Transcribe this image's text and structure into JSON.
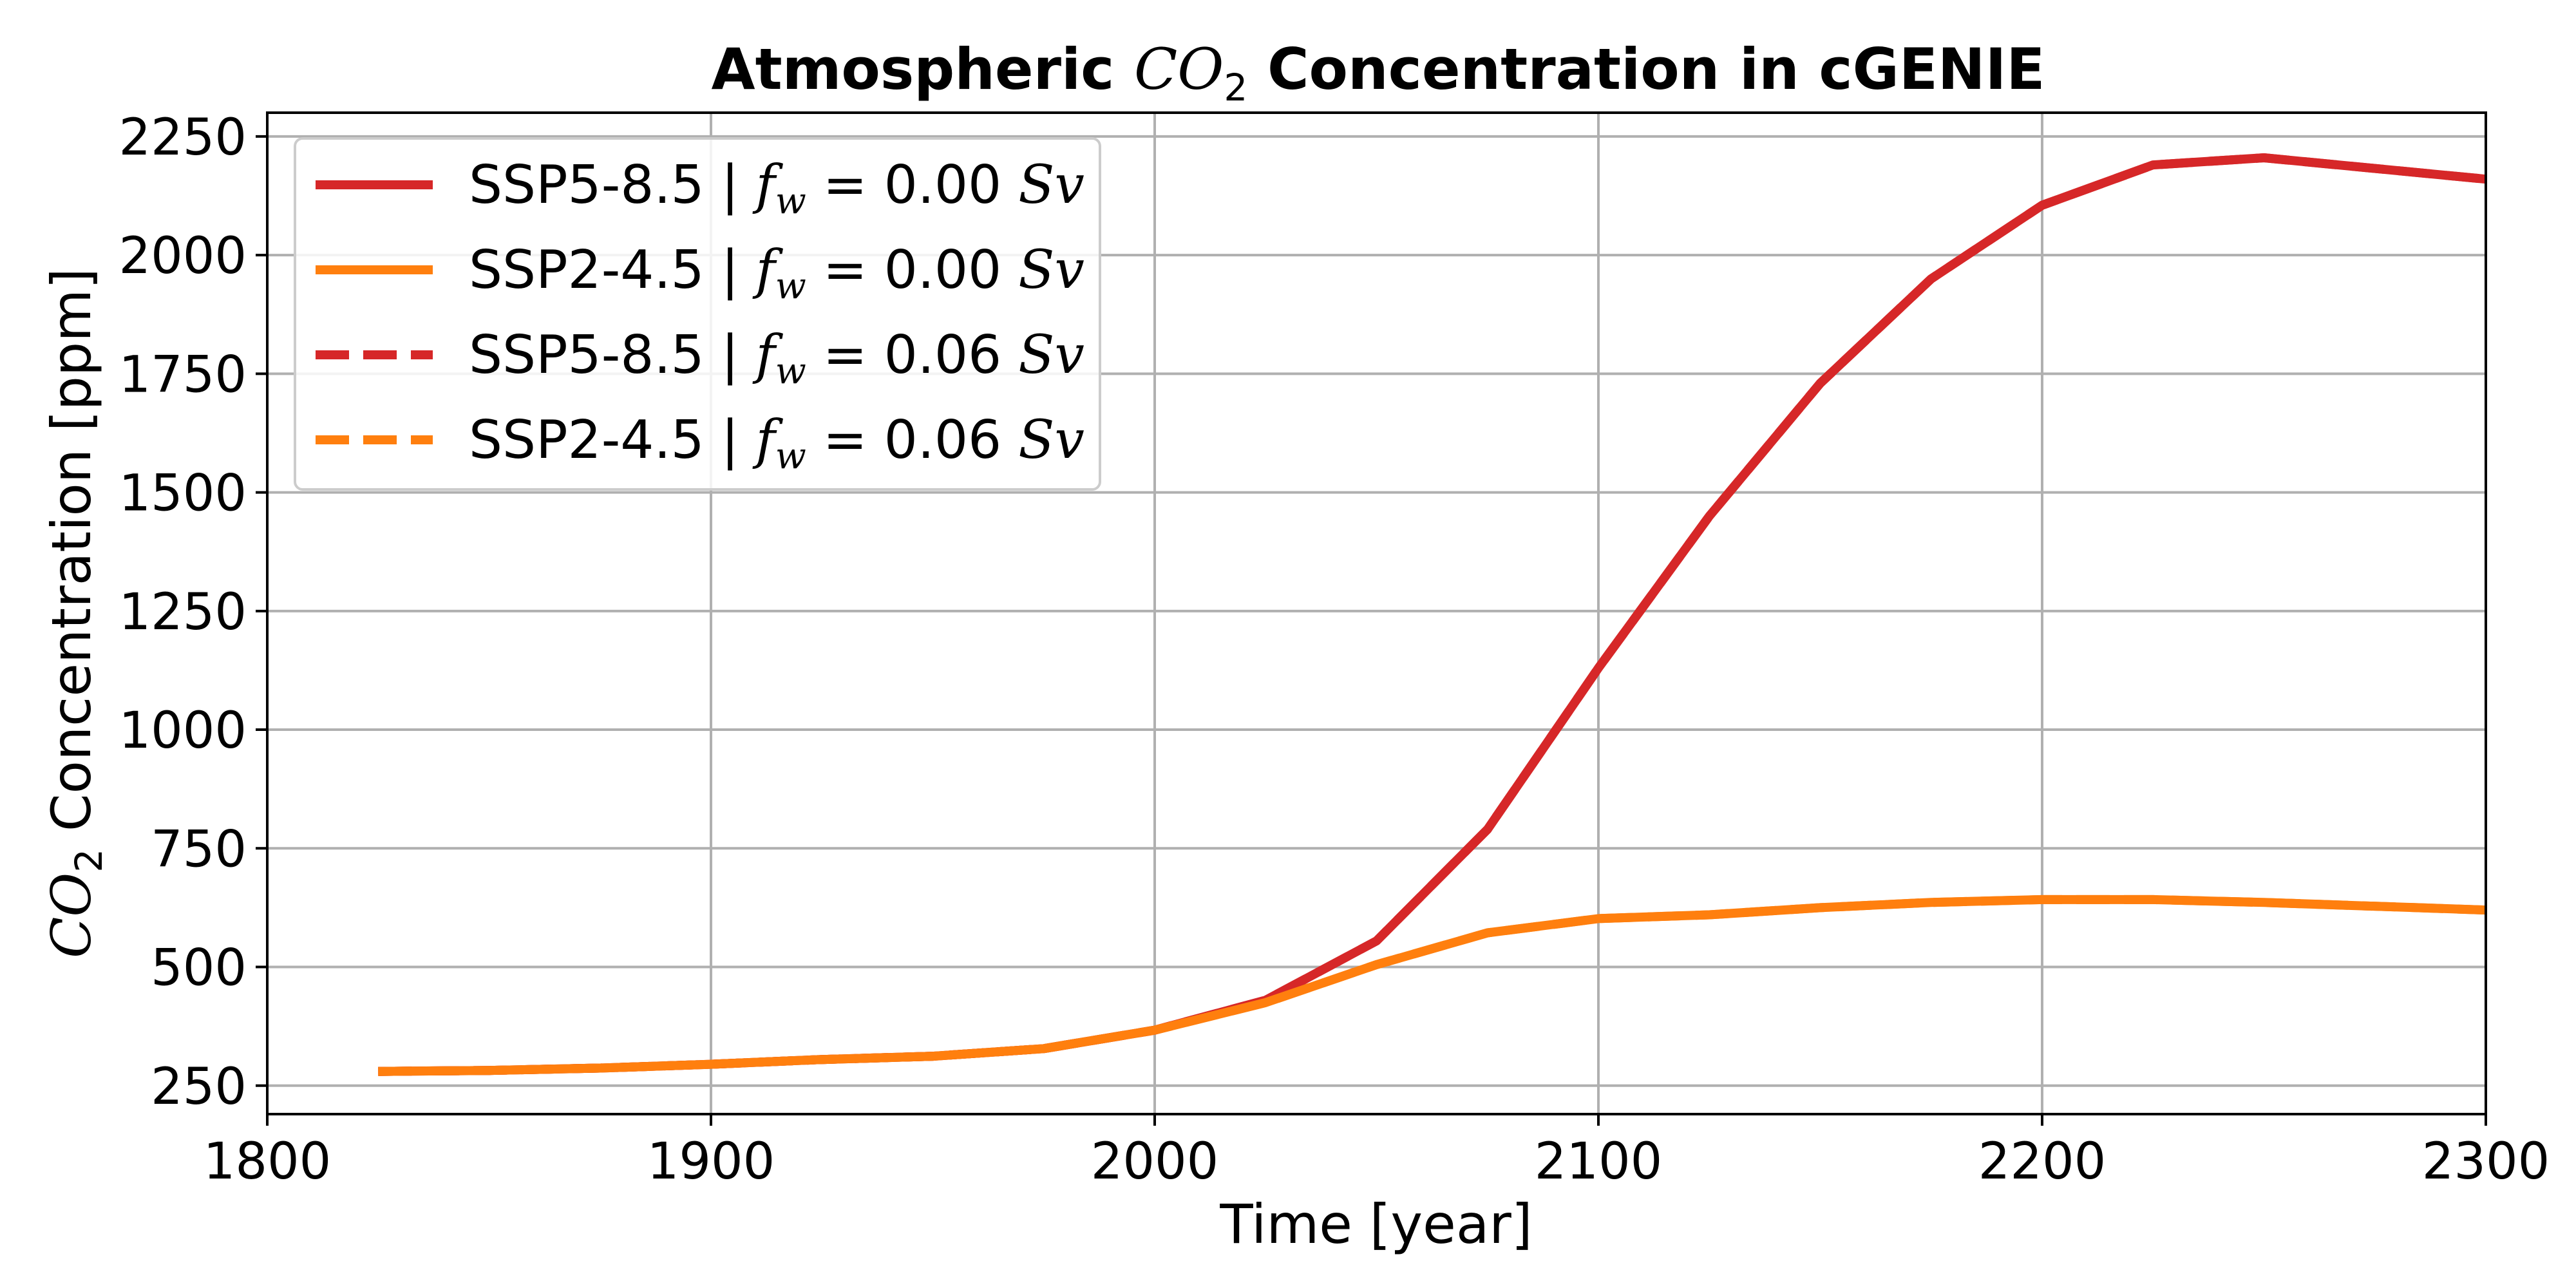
{
  "chart_data": {
    "type": "line",
    "title": {
      "prefix": "Atmospheric ",
      "math": "CO",
      "sub": "2",
      "suffix": " Concentration in cGENIE"
    },
    "xlabel": "Time [year]",
    "ylabel": {
      "math": "CO",
      "sub": "2",
      "rest": " Concentration [ppm]"
    },
    "xlim": [
      1800,
      2300
    ],
    "ylim": [
      190,
      2300
    ],
    "xticks": [
      1800,
      1900,
      2000,
      2100,
      2200,
      2300
    ],
    "yticks": [
      250,
      500,
      750,
      1000,
      1250,
      1500,
      1750,
      2000,
      2250
    ],
    "grid": true,
    "legend_position": "top-left",
    "x": [
      1825,
      1850,
      1875,
      1900,
      1925,
      1950,
      1975,
      2000,
      2025,
      2050,
      2075,
      2100,
      2125,
      2150,
      2175,
      2200,
      2225,
      2250,
      2300
    ],
    "series": [
      {
        "name": "SSP5-8.5 | ",
        "name_math": "f",
        "name_sub": "w",
        "name_value": " = 0.00 ",
        "name_unit": "Sv",
        "color": "#d62728",
        "dash": "solid",
        "values": [
          280,
          282,
          287,
          295,
          305,
          312,
          328,
          367,
          430,
          555,
          790,
          1130,
          1450,
          1730,
          1950,
          2105,
          2190,
          2205,
          2160
        ]
      },
      {
        "name": "SSP2-4.5 | ",
        "name_math": "f",
        "name_sub": "w",
        "name_value": " = 0.00 ",
        "name_unit": "Sv",
        "color": "#ff7f0e",
        "dash": "solid",
        "values": [
          280,
          282,
          287,
          295,
          305,
          312,
          328,
          367,
          425,
          505,
          572,
          602,
          610,
          625,
          636,
          642,
          642,
          636,
          620
        ]
      },
      {
        "name": "SSP5-8.5 | ",
        "name_math": "f",
        "name_sub": "w",
        "name_value": " = 0.06 ",
        "name_unit": "Sv",
        "color": "#d62728",
        "dash": "dashed",
        "values": [
          280,
          282,
          287,
          295,
          305,
          312,
          328,
          367,
          430,
          555,
          790,
          1130,
          1450,
          1730,
          1950,
          2105,
          2190,
          2205,
          2160
        ]
      },
      {
        "name": "SSP2-4.5 | ",
        "name_math": "f",
        "name_sub": "w",
        "name_value": " = 0.06 ",
        "name_unit": "Sv",
        "color": "#ff7f0e",
        "dash": "dashed",
        "values": [
          280,
          282,
          287,
          295,
          305,
          312,
          328,
          367,
          425,
          505,
          572,
          602,
          610,
          625,
          636,
          642,
          642,
          636,
          620
        ]
      }
    ]
  }
}
